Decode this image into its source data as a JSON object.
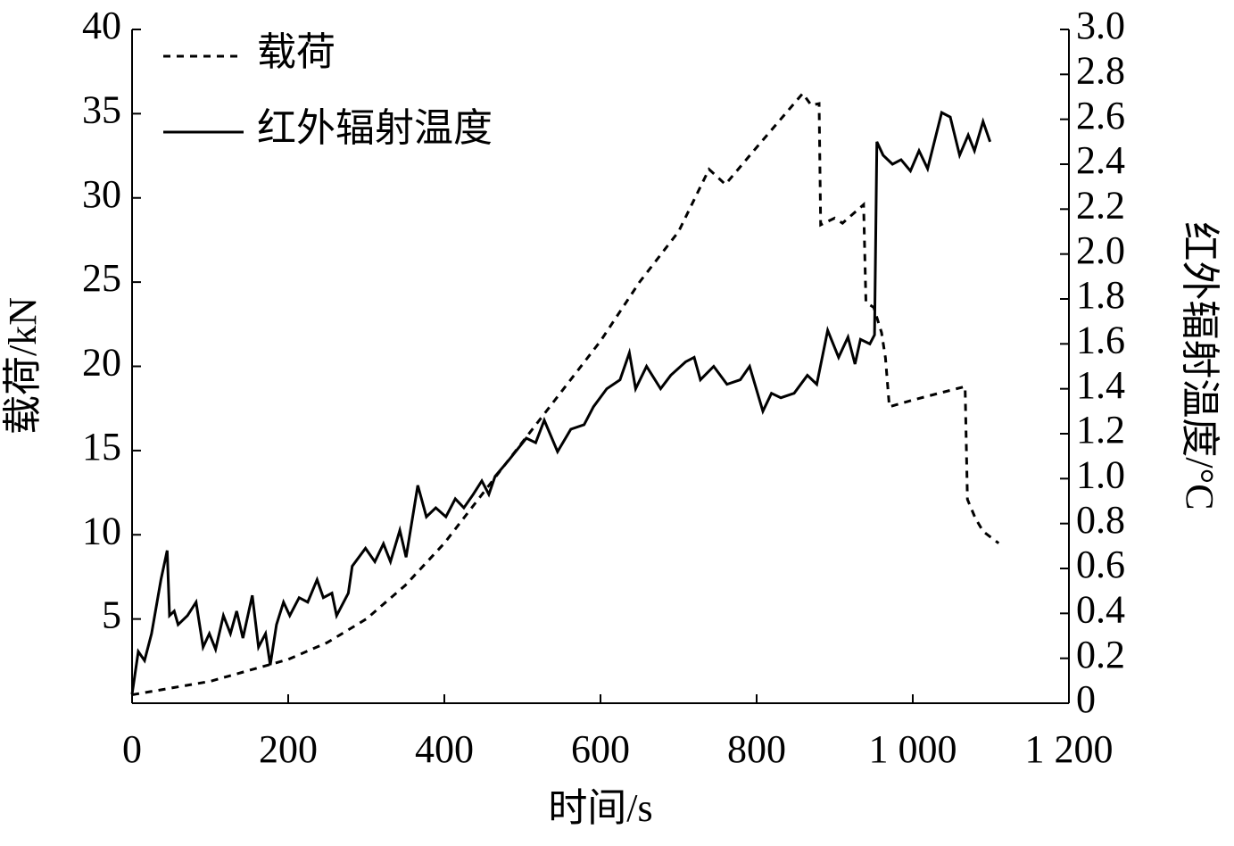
{
  "chart_data": {
    "type": "line",
    "xlabel": "时间/s",
    "ylabel": "载荷/kN",
    "y2label": "红外辐射温度/°C",
    "xlim": [
      0,
      1200
    ],
    "xticks": [
      0,
      200,
      400,
      600,
      800,
      {
        "value": 1000,
        "label": "1 000"
      },
      {
        "value": 1200,
        "label": "1 200"
      }
    ],
    "ylim": [
      0,
      40
    ],
    "yticks": [
      5,
      10,
      15,
      20,
      25,
      30,
      35,
      40
    ],
    "y2lim": [
      0,
      3
    ],
    "y2ticks": [
      0,
      0.2,
      0.4,
      0.6,
      0.8,
      {
        "value": 1,
        "label": "1.0"
      },
      1.2,
      1.4,
      1.6,
      1.8,
      {
        "value": 2,
        "label": "2.0"
      },
      2.2,
      2.4,
      2.6,
      2.8,
      {
        "value": 3,
        "label": "3.0"
      }
    ],
    "legend": "upper left",
    "series": [
      {
        "name": "载荷",
        "color": "#000000",
        "linestyle": "dashed",
        "x": [
          0,
          100,
          200,
          250,
          300,
          350,
          400,
          450,
          500,
          550,
          600,
          650,
          700,
          739,
          760,
          800,
          859,
          870,
          880,
          882,
          900,
          910,
          937,
          940,
          950,
          960,
          965,
          970,
          1000,
          1050,
          1067,
          1070,
          1080,
          1090,
          1110
        ],
        "values": [
          0.5,
          1.3,
          2.6,
          3.6,
          5,
          7,
          9.5,
          12.5,
          15.5,
          18.5,
          21.5,
          25,
          28,
          31.7,
          30.8,
          33,
          36.2,
          35.5,
          35.6,
          28.4,
          28.8,
          28.5,
          29.6,
          23.8,
          23.5,
          22,
          20.5,
          17.6,
          18,
          18.6,
          18.8,
          12.1,
          11,
          10.2,
          9.5
        ]
      },
      {
        "name": "红外辐射温度",
        "color": "#000000",
        "linestyle": "solid",
        "axis": "y2",
        "x": [
          0,
          8,
          16,
          25,
          37,
          45,
          48,
          54,
          59,
          71,
          82,
          91,
          99,
          107,
          117,
          126,
          134,
          142,
          154,
          162,
          171,
          177,
          185,
          194,
          202,
          214,
          225,
          237,
          245,
          256,
          262,
          277,
          282,
          299,
          311,
          322,
          331,
          343,
          351,
          366,
          377,
          389,
          402,
          414,
          425,
          437,
          448,
          457,
          465,
          482,
          505,
          517,
          528,
          545,
          562,
          579,
          591,
          608,
          625,
          637,
          645,
          659,
          677,
          690,
          709,
          720,
          728,
          745,
          762,
          779,
          791,
          808,
          819,
          831,
          848,
          865,
          877,
          891,
          905,
          917,
          926,
          933,
          945,
          951,
          954,
          962,
          974,
          985,
          997,
          1008,
          1019,
          1037,
          1048,
          1060,
          1071,
          1079,
          1090,
          1099
        ],
        "values": [
          0.04,
          0.23,
          0.19,
          0.31,
          0.55,
          0.68,
          0.39,
          0.41,
          0.35,
          0.39,
          0.45,
          0.25,
          0.31,
          0.24,
          0.39,
          0.31,
          0.41,
          0.29,
          0.48,
          0.25,
          0.31,
          0.17,
          0.35,
          0.45,
          0.39,
          0.47,
          0.45,
          0.55,
          0.47,
          0.49,
          0.39,
          0.49,
          0.61,
          0.69,
          0.63,
          0.71,
          0.63,
          0.77,
          0.65,
          0.97,
          0.83,
          0.87,
          0.83,
          0.91,
          0.87,
          0.93,
          0.99,
          0.93,
          1.01,
          1.08,
          1.18,
          1.16,
          1.26,
          1.12,
          1.22,
          1.24,
          1.32,
          1.4,
          1.44,
          1.56,
          1.4,
          1.5,
          1.4,
          1.46,
          1.52,
          1.54,
          1.44,
          1.5,
          1.42,
          1.44,
          1.5,
          1.3,
          1.38,
          1.36,
          1.38,
          1.46,
          1.42,
          1.66,
          1.54,
          1.63,
          1.51,
          1.62,
          1.6,
          1.64,
          2.5,
          2.44,
          2.4,
          2.42,
          2.37,
          2.46,
          2.38,
          2.63,
          2.61,
          2.44,
          2.53,
          2.46,
          2.59,
          2.5
        ]
      }
    ]
  }
}
